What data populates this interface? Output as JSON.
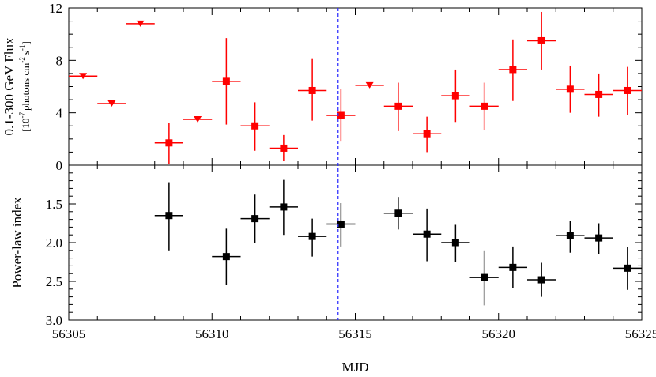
{
  "chart_data": [
    {
      "type": "scatter",
      "panel": "top",
      "ylabel": "0.1-300 GeV Flux",
      "ylabel_units": {
        "prefix": "[10",
        "exp1": "-7",
        "mid": "photons cm",
        "exp2": "-2",
        "s": "s",
        "exp3": "-1",
        "suffix": "]"
      },
      "ylim": [
        0,
        12
      ],
      "yticks": [
        "0",
        "4",
        "8",
        "12"
      ],
      "color": "#ff0000",
      "upper_limits": [
        {
          "x": 56305.5,
          "y": 6.8
        },
        {
          "x": 56306.5,
          "y": 4.7
        },
        {
          "x": 56307.5,
          "y": 10.8
        },
        {
          "x": 56309.5,
          "y": 3.5
        },
        {
          "x": 56315.5,
          "y": 6.1
        }
      ],
      "detections": [
        {
          "x": 56308.5,
          "y": 1.7,
          "ylo": 0.1,
          "yhi": 3.2
        },
        {
          "x": 56310.5,
          "y": 6.4,
          "ylo": 3.1,
          "yhi": 9.7
        },
        {
          "x": 56311.5,
          "y": 3.0,
          "ylo": 1.1,
          "yhi": 4.8
        },
        {
          "x": 56312.5,
          "y": 1.3,
          "ylo": 0.3,
          "yhi": 2.3
        },
        {
          "x": 56313.5,
          "y": 5.7,
          "ylo": 3.4,
          "yhi": 8.1
        },
        {
          "x": 56314.5,
          "y": 3.8,
          "ylo": 1.8,
          "yhi": 5.8
        },
        {
          "x": 56316.5,
          "y": 4.5,
          "ylo": 2.6,
          "yhi": 6.3
        },
        {
          "x": 56317.5,
          "y": 2.4,
          "ylo": 1.0,
          "yhi": 3.7
        },
        {
          "x": 56318.5,
          "y": 5.3,
          "ylo": 3.3,
          "yhi": 7.3
        },
        {
          "x": 56319.5,
          "y": 4.5,
          "ylo": 2.7,
          "yhi": 6.3
        },
        {
          "x": 56320.5,
          "y": 7.3,
          "ylo": 4.9,
          "yhi": 9.6
        },
        {
          "x": 56321.5,
          "y": 9.5,
          "ylo": 7.3,
          "yhi": 11.7
        },
        {
          "x": 56322.5,
          "y": 5.8,
          "ylo": 4.0,
          "yhi": 7.6
        },
        {
          "x": 56323.5,
          "y": 5.4,
          "ylo": 3.7,
          "yhi": 7.0
        },
        {
          "x": 56324.5,
          "y": 5.7,
          "ylo": 3.8,
          "yhi": 7.5
        }
      ]
    },
    {
      "type": "scatter",
      "panel": "bottom",
      "ylabel": "Power-law index",
      "ylim": [
        3.0,
        1.0
      ],
      "yticks": [
        "1.5",
        "2.0",
        "2.5",
        "3.0"
      ],
      "color": "#000000",
      "points": [
        {
          "x": 56308.5,
          "y": 1.65,
          "ylo": 1.22,
          "yhi": 2.1
        },
        {
          "x": 56310.5,
          "y": 2.18,
          "ylo": 1.82,
          "yhi": 2.55
        },
        {
          "x": 56311.5,
          "y": 1.69,
          "ylo": 1.38,
          "yhi": 2.0
        },
        {
          "x": 56312.5,
          "y": 1.54,
          "ylo": 1.19,
          "yhi": 1.9
        },
        {
          "x": 56313.5,
          "y": 1.92,
          "ylo": 1.69,
          "yhi": 2.18
        },
        {
          "x": 56314.5,
          "y": 1.76,
          "ylo": 1.49,
          "yhi": 2.05
        },
        {
          "x": 56316.5,
          "y": 1.62,
          "ylo": 1.41,
          "yhi": 1.83
        },
        {
          "x": 56317.5,
          "y": 1.89,
          "ylo": 1.56,
          "yhi": 2.24
        },
        {
          "x": 56318.5,
          "y": 2.0,
          "ylo": 1.77,
          "yhi": 2.25
        },
        {
          "x": 56319.5,
          "y": 2.45,
          "ylo": 2.1,
          "yhi": 2.81
        },
        {
          "x": 56320.5,
          "y": 2.32,
          "ylo": 2.05,
          "yhi": 2.59
        },
        {
          "x": 56321.5,
          "y": 2.48,
          "ylo": 2.26,
          "yhi": 2.7
        },
        {
          "x": 56322.5,
          "y": 1.91,
          "ylo": 1.72,
          "yhi": 2.13
        },
        {
          "x": 56323.5,
          "y": 1.94,
          "ylo": 1.75,
          "yhi": 2.15
        },
        {
          "x": 56324.5,
          "y": 2.33,
          "ylo": 2.06,
          "yhi": 2.61
        }
      ]
    }
  ],
  "shared": {
    "xlabel": "MJD",
    "xlim": [
      56305,
      56325
    ],
    "xticks": [
      "56305",
      "56310",
      "56315",
      "56320",
      "56325"
    ],
    "bin_halfwidth": 0.5,
    "marker_line_x": 56314.4,
    "marker_line_color": "#3333ff"
  }
}
